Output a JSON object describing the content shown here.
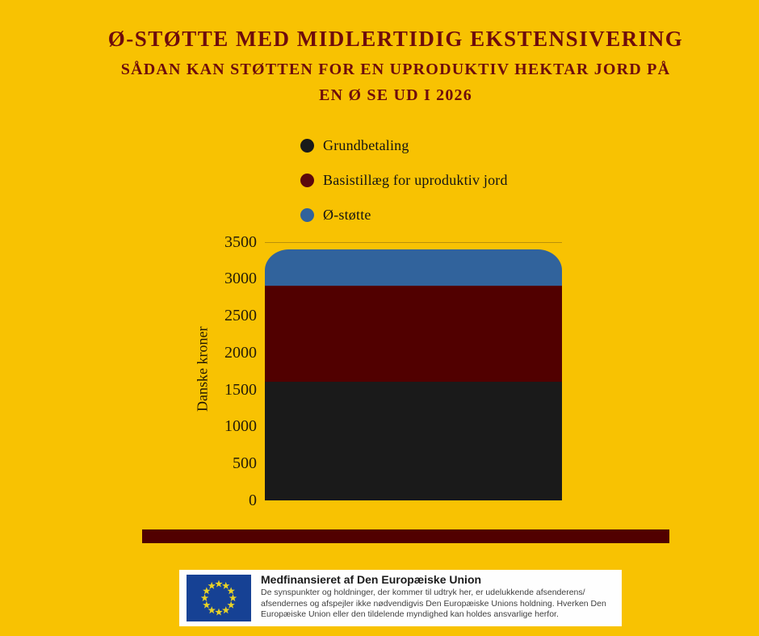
{
  "page": {
    "background_color": "#F8C202"
  },
  "title": {
    "line1": "Ø-STØTTE MED MIDLERTIDIG EKSTENSIVERING",
    "line2": "SÅDAN KAN STØTTEN FOR EN UPRODUKTIV HEKTAR JORD PÅ",
    "line3": "EN Ø SE UD I 2026",
    "color": "#6E0C0C"
  },
  "legend": {
    "items": [
      {
        "label": "Grundbetaling",
        "color": "#1A1A1A"
      },
      {
        "label": "Basistillæg for uproduktiv jord",
        "color": "#5C080C"
      },
      {
        "label": "Ø-støtte",
        "color": "#31639C"
      }
    ]
  },
  "chart_data": {
    "type": "bar",
    "stacked": true,
    "categories": [
      ""
    ],
    "series": [
      {
        "name": "Grundbetaling",
        "color": "#1A1A1A",
        "values": [
          1600
        ]
      },
      {
        "name": "Basistillæg for uproduktiv jord",
        "color": "#510000",
        "values": [
          1300
        ]
      },
      {
        "name": "Ø-støtte",
        "color": "#31639C",
        "values": [
          500
        ]
      }
    ],
    "stack_total": 3400,
    "title": "Ø-støtte med midlertidig ekstensivering",
    "xlabel": "",
    "ylabel": "Danske kroner",
    "ylim": [
      0,
      3500
    ],
    "yticks": [
      0,
      500,
      1000,
      1500,
      2000,
      2500,
      3000,
      3500
    ],
    "grid": "single horizontal gridline at 3500",
    "legend_position": "above chart, left-aligned",
    "bar_corner": "rounded top corners"
  },
  "footer": {
    "divider_color": "#510000",
    "eu_box": {
      "heading": "Medfinansieret af Den Europæiske Union",
      "body": "De synspunkter og holdninger, der kommer til udtryk her, er udelukkende afsenderens/ afsendernes og afspejler ikke nødvendigvis Den Europæiske Unions holdning. Hverken Den Europæiske Union eller den tildelende myndighed kan holdes ansvarlige herfor.",
      "flag": {
        "icon": "eu-flag-icon",
        "background": "#164194",
        "star_color": "#E8D227"
      }
    }
  }
}
